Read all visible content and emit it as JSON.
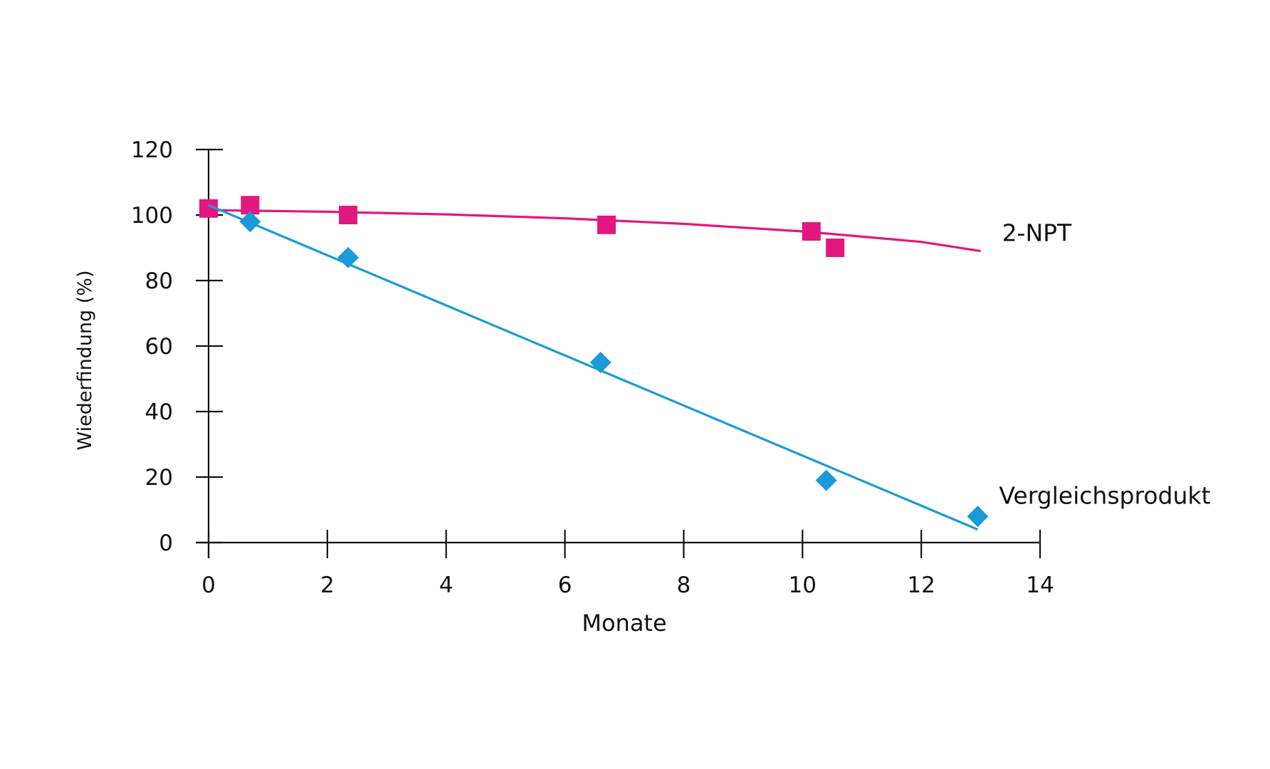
{
  "chart_data": {
    "type": "scatter",
    "title": "",
    "xlabel": "Monate",
    "ylabel": "Wiederfindung (%)",
    "xlim": [
      0,
      14
    ],
    "ylim": [
      0,
      120
    ],
    "xticks": [
      "0",
      "2",
      "4",
      "6",
      "8",
      "10",
      "12",
      "14"
    ],
    "yticks": [
      "0",
      "20",
      "40",
      "60",
      "80",
      "100",
      "120"
    ],
    "grid": false,
    "legend": "direct labels at right end of each series",
    "series": [
      {
        "name": "2-NPT",
        "marker": "square",
        "color": "#e2177f",
        "points": [
          {
            "x": 0,
            "y": 102
          },
          {
            "x": 0.7,
            "y": 103
          },
          {
            "x": 2.35,
            "y": 100
          },
          {
            "x": 6.7,
            "y": 97
          },
          {
            "x": 10.15,
            "y": 95
          },
          {
            "x": 10.55,
            "y": 90
          }
        ],
        "trend": [
          {
            "x": 0,
            "y": 101.5
          },
          {
            "x": 2,
            "y": 101
          },
          {
            "x": 4,
            "y": 100.2
          },
          {
            "x": 6,
            "y": 99
          },
          {
            "x": 8,
            "y": 97.3
          },
          {
            "x": 10,
            "y": 95
          },
          {
            "x": 12,
            "y": 91.8
          },
          {
            "x": 13,
            "y": 89
          }
        ]
      },
      {
        "name": "Vergleichsprodukt",
        "marker": "diamond",
        "color": "#1a9ad6",
        "points": [
          {
            "x": 0.7,
            "y": 98
          },
          {
            "x": 2.35,
            "y": 87
          },
          {
            "x": 6.6,
            "y": 55
          },
          {
            "x": 10.4,
            "y": 19
          },
          {
            "x": 12.95,
            "y": 8
          }
        ],
        "trend": [
          {
            "x": 0,
            "y": 103
          },
          {
            "x": 12.95,
            "y": 4
          }
        ]
      }
    ]
  }
}
